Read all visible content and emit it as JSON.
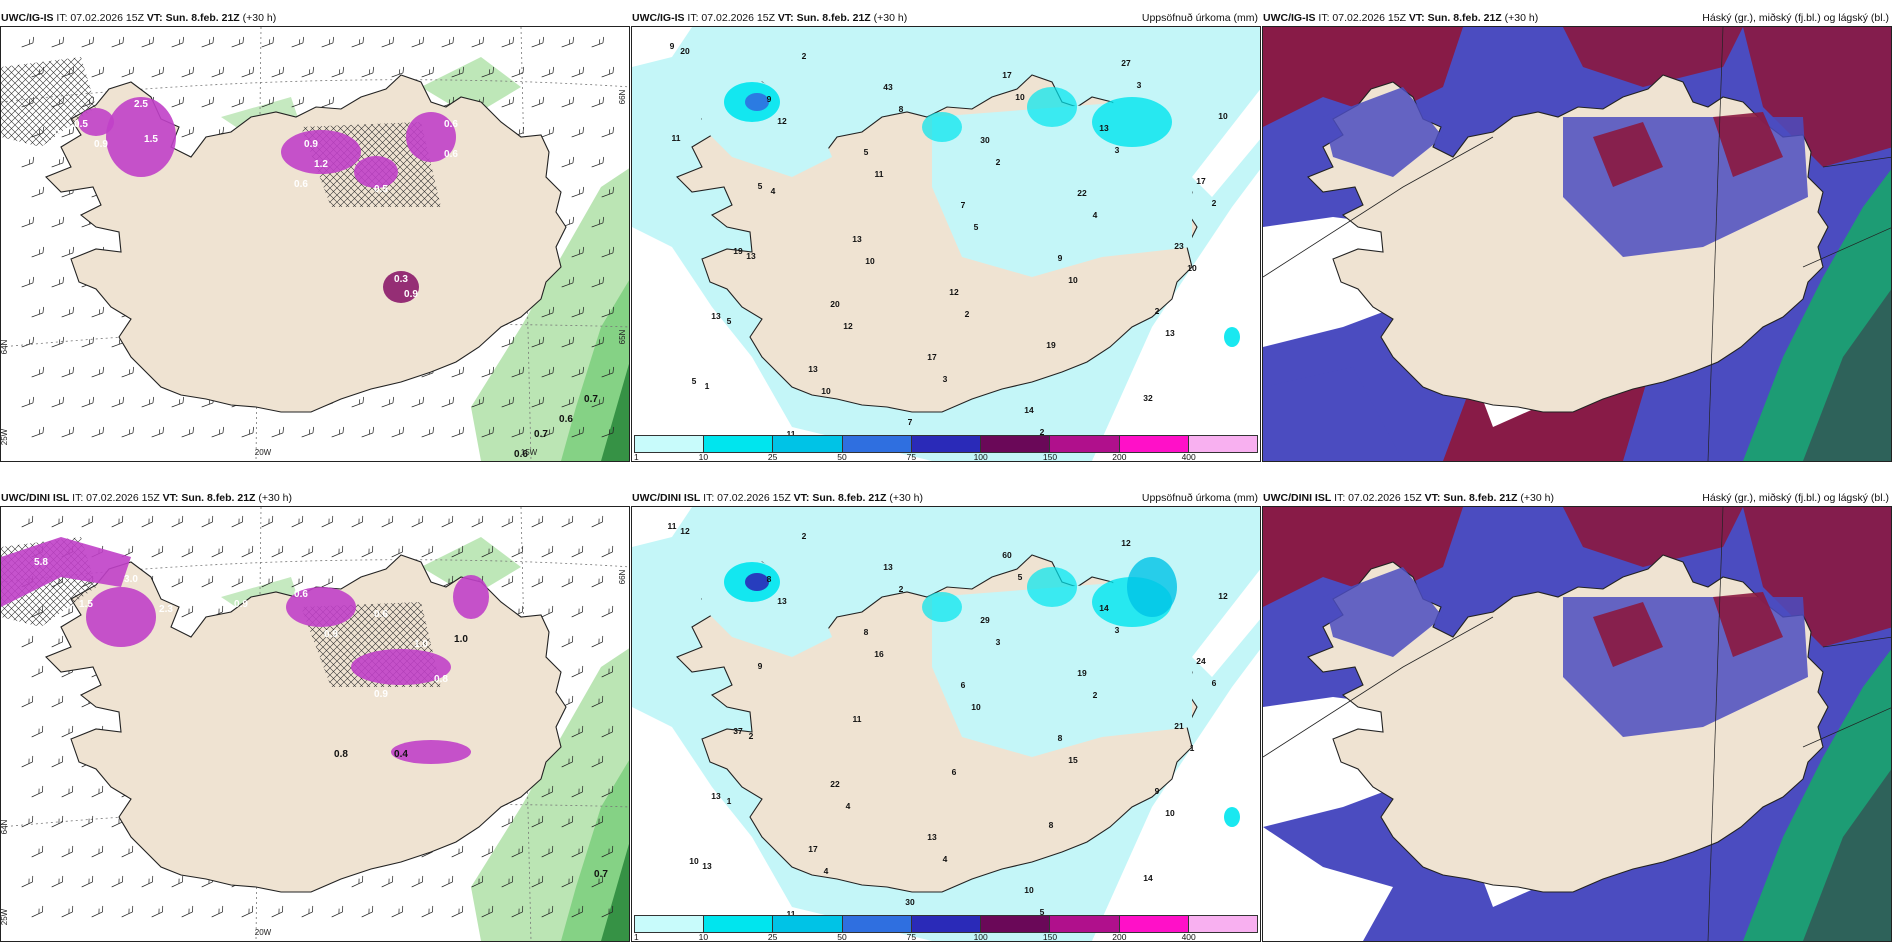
{
  "panels": [
    {
      "id": "ig-phase",
      "model": "UWC/IG-IS",
      "it": "IT: 07.02.2026 15Z",
      "vt_label": "VT:",
      "vt": "Sun. 8.feb. 21Z",
      "lead": "(+30 h)",
      "variable": "",
      "labels": [
        "2.5",
        "1.5",
        "0.9",
        "0.5",
        "0.5",
        "0.9",
        "1.2",
        "0.6",
        "0.5",
        "0.3",
        "0.9",
        "0.6",
        "0.6",
        "0.7",
        "0.6",
        "0.7",
        "0.6"
      ],
      "gridlabels": {
        "lon1": "20W",
        "lon2": "15W",
        "lat1": "66N",
        "lat2": "65N",
        "lat3": "64N",
        "side1": "25W",
        "side2": "64N"
      }
    },
    {
      "id": "ig-precip",
      "model": "UWC/IG-IS",
      "it": "IT: 07.02.2026 15Z",
      "vt_label": "VT:",
      "vt": "Sun. 8.feb. 21Z",
      "lead": "(+30 h)",
      "variable": "Uppsöfnuð úrkoma (mm)",
      "labels": [
        "9",
        "9",
        "5",
        "7",
        "9",
        "2",
        "5",
        "11",
        "43",
        "30",
        "22",
        "23",
        "13",
        "13",
        "7",
        "17",
        "13",
        "17",
        "19",
        "20",
        "17",
        "14",
        "27",
        "10",
        "5",
        "13",
        "12",
        "19",
        "32",
        "20",
        "12",
        "11",
        "5",
        "10",
        "13",
        "1",
        "2",
        "8",
        "2",
        "4",
        "10",
        "5",
        "10",
        "12",
        "10",
        "3",
        "2",
        "13",
        "12",
        "3",
        "2",
        "3",
        "11",
        "4",
        "10",
        "2"
      ]
    },
    {
      "id": "ig-cloud",
      "model": "UWC/IG-IS",
      "it": "IT: 07.02.2026 15Z",
      "vt_label": "VT:",
      "vt": "Sun. 8.feb. 21Z",
      "lead": "(+30 h)",
      "variable": "Háský (gr.), miðský (fj.bl.) og lágský (bl.)"
    },
    {
      "id": "dini-phase",
      "model": "UWC/DINI ISL",
      "it": "IT: 07.02.2026 15Z",
      "vt_label": "VT:",
      "vt": "Sun. 8.feb. 21Z",
      "lead": "(+30 h)",
      "variable": "",
      "labels": [
        "5.8",
        "3.0",
        "2.3",
        "1.5",
        "0.9",
        "0.6",
        "0.6",
        "1.0",
        "0.8",
        "0.9",
        "0.9",
        "1.0",
        "0.8",
        "0.4",
        "0.7"
      ],
      "gridlabels": {
        "lon1": "20W",
        "lon2": "",
        "lat1": "66N",
        "lat2": "",
        "lat3": "",
        "side1": "25W",
        "side2": "64N"
      }
    },
    {
      "id": "dini-precip",
      "model": "UWC/DINI ISL",
      "it": "IT: 07.02.2026 15Z",
      "vt_label": "VT:",
      "vt": "Sun. 8.feb. 21Z",
      "lead": "(+30 h)",
      "variable": "Uppsöfnuð úrkoma (mm)",
      "labels": [
        "11",
        "8",
        "8",
        "6",
        "8",
        "9",
        "10",
        "11",
        "13",
        "29",
        "19",
        "21",
        "13",
        "17",
        "30",
        "60",
        "14",
        "24",
        "37",
        "22",
        "13",
        "10",
        "12",
        "12",
        "9",
        "11",
        "6",
        "8",
        "14",
        "12",
        "13",
        "16",
        "10",
        "15",
        "10",
        "13",
        "2",
        "2",
        "3",
        "2",
        "1",
        "1",
        "4",
        "9",
        "5",
        "3",
        "6",
        "2",
        "4",
        "4",
        "5"
      ]
    },
    {
      "id": "dini-cloud",
      "model": "UWC/DINI ISL",
      "it": "IT: 07.02.2026 15Z",
      "vt_label": "VT:",
      "vt": "Sun. 8.feb. 21Z",
      "lead": "(+30 h)",
      "variable": "Háský (gr.), miðský (fj.bl.) og lágský (bl.)"
    }
  ],
  "colorbar": {
    "ticks": [
      "1",
      "10",
      "25",
      "50",
      "75",
      "100",
      "150",
      "200",
      "400"
    ],
    "colors": [
      "#c8fbfb",
      "#00e5ee",
      "#00c3e6",
      "#2f6fe0",
      "#2a2ab8",
      "#6a0858",
      "#b0108c",
      "#ff10c8",
      "#f8b0f0"
    ]
  },
  "map_colors": {
    "land": "#efe3d2",
    "sea_precip": "#c4f6f8",
    "phase_snow": "#c040c8",
    "phase_rain": "#b7e4b0",
    "cloud_high": "#8b1840",
    "cloud_mid": "#4b4cc0",
    "cloud_low": "#1aa070"
  }
}
